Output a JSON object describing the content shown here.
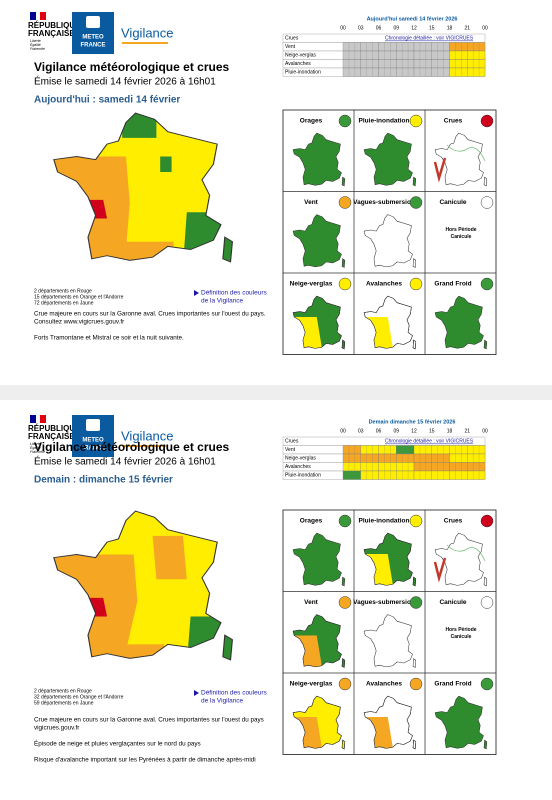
{
  "logo": {
    "line1": "RÉPUBLIQUE",
    "line2": "FRANÇAISE",
    "motto": [
      "Liberté",
      "Égalité",
      "Fraternité"
    ],
    "brand1": "METEO",
    "brand2": "FRANCE",
    "vigilance": "Vigilance"
  },
  "pages": [
    {
      "timeline": {
        "title": "Aujourd'hui samedi 14 février 2026",
        "hours": [
          "00",
          "03",
          "06",
          "09",
          "12",
          "15",
          "18",
          "21",
          "00"
        ],
        "link": "Chronologie détaillée : voir VIGICRUES",
        "rows": [
          {
            "label": "Crues",
            "cells": []
          },
          {
            "label": "Vent",
            "cells": [
              "#c8c8c8",
              "#c8c8c8",
              "#c8c8c8",
              "#c8c8c8",
              "#c8c8c8",
              "#c8c8c8",
              "#f5a623",
              "#f5a623"
            ]
          },
          {
            "label": "Neige-verglas",
            "cells": [
              "#c8c8c8",
              "#c8c8c8",
              "#c8c8c8",
              "#c8c8c8",
              "#c8c8c8",
              "#c8c8c8",
              "#ffee00",
              "#ffee00"
            ]
          },
          {
            "label": "Avalanches",
            "cells": [
              "#c8c8c8",
              "#c8c8c8",
              "#c8c8c8",
              "#c8c8c8",
              "#c8c8c8",
              "#c8c8c8",
              "#ffee00",
              "#ffee00"
            ]
          },
          {
            "label": "Pluie-inondation",
            "cells": [
              "#c8c8c8",
              "#c8c8c8",
              "#c8c8c8",
              "#c8c8c8",
              "#c8c8c8",
              "#c8c8c8",
              "#ffee00",
              "#ffee00"
            ]
          }
        ]
      },
      "title": "Vigilance météorologique et crues",
      "issued": "Émise le samedi 14 février 2026 à 16h01",
      "heading": "Aujourd'hui : samedi 14 février",
      "counts": [
        "2 départements en Rouge",
        "15 départements en Orange et l'Andorre",
        "72 départements en Jaune"
      ],
      "legend_link": [
        "Définition des couleurs",
        "de la Vigilance"
      ],
      "paragraphs": [
        [
          "Crue majeure en cours sur la Garonne aval. Crues importantes sur l'ouest du pays.",
          "Consultez www.vigicrues.gouv.fr"
        ],
        [
          "Forts Tramontane et Mistral ce soir et la nuit suivante."
        ]
      ],
      "tiles": [
        {
          "label": "Orages",
          "icon": "#3a9a3a",
          "map": [
            "#2e8b2e",
            null
          ]
        },
        {
          "label": "Pluie-inondation",
          "icon": "#ffee00",
          "map": [
            "#2e8b2e",
            null
          ]
        },
        {
          "label": "Crues",
          "icon": "#d0021b",
          "map": [
            "#ffffff",
            null
          ]
        },
        {
          "label": "Vent",
          "icon": "#f5a623",
          "map": [
            "#2e8b2e",
            null
          ]
        },
        {
          "label": "Vagues-submersion",
          "icon": "#3a9a3a",
          "map": [
            "#ffffff",
            null
          ]
        },
        {
          "label": "Canicule",
          "icon": "#ffffff",
          "note": [
            "Hors Période",
            "Canicule"
          ]
        },
        {
          "label": "Neige-verglas",
          "icon": "#ffee00",
          "map": [
            "#2e8b2e",
            "#ffee00"
          ]
        },
        {
          "label": "Avalanches",
          "icon": "#ffee00",
          "map": [
            "#ffffff",
            "#ffee00"
          ]
        },
        {
          "label": "Grand Froid",
          "icon": "#3a9a3a",
          "map": [
            "#2e8b2e",
            null
          ]
        }
      ]
    },
    {
      "timeline": {
        "title": "Demain dimanche 15 février 2026",
        "hours": [
          "00",
          "03",
          "06",
          "09",
          "12",
          "15",
          "18",
          "21",
          "00"
        ],
        "link": "Chronologie détaillée : voir VIGICRUES",
        "rows": [
          {
            "label": "Crues",
            "cells": []
          },
          {
            "label": "Vent",
            "cells": [
              "#f5a623",
              "#ffee00",
              "#ffee00",
              "#3a9a3a",
              "#ffee00",
              "#ffee00",
              "#ffee00",
              "#ffee00"
            ]
          },
          {
            "label": "Neige-verglas",
            "cells": [
              "#f5a623",
              "#f5a623",
              "#f5a623",
              "#f5a623",
              "#f5a623",
              "#f5a623",
              "#ffee00",
              "#ffee00"
            ]
          },
          {
            "label": "Avalanches",
            "cells": [
              "#ffee00",
              "#ffee00",
              "#ffee00",
              "#ffee00",
              "#f5a623",
              "#f5a623",
              "#f5a623",
              "#f5a623"
            ]
          },
          {
            "label": "Pluie-inondation",
            "cells": [
              "#3a9a3a",
              "#ffee00",
              "#ffee00",
              "#ffee00",
              "#ffee00",
              "#ffee00",
              "#ffee00",
              "#ffee00"
            ]
          }
        ]
      },
      "title": "Vigilance météorologique et crues",
      "issued": "Émise le samedi 14 février 2026 à 16h01",
      "heading": "Demain : dimanche 15 février",
      "counts": [
        "2 départements en Rouge",
        "32 départements en Orange et l'Andorre",
        "59 départements en Jaune"
      ],
      "legend_link": [
        "Définition des couleurs",
        "de la Vigilance"
      ],
      "paragraphs": [
        [
          "Crue majeure en cours sur la Garonne aval. Crues importantes sur l'ouest du pays",
          "vigicrues.gouv.fr"
        ],
        [
          "Épisode de neige et pluies verglaçantes sur le nord du pays"
        ],
        [
          "Risque d'avalanche important sur les Pyrénées à partir de dimanche après-midi"
        ]
      ],
      "tiles": [
        {
          "label": "Orages",
          "icon": "#3a9a3a",
          "map": [
            "#2e8b2e",
            null
          ]
        },
        {
          "label": "Pluie-inondation",
          "icon": "#ffee00",
          "map": [
            "#2e8b2e",
            "#ffee00"
          ]
        },
        {
          "label": "Crues",
          "icon": "#d0021b",
          "map": [
            "#ffffff",
            null
          ]
        },
        {
          "label": "Vent",
          "icon": "#f5a623",
          "map": [
            "#2e8b2e",
            "#f5a623"
          ]
        },
        {
          "label": "Vagues-submersion",
          "icon": "#3a9a3a",
          "map": [
            "#ffffff",
            null
          ]
        },
        {
          "label": "Canicule",
          "icon": "#ffffff",
          "note": [
            "Hors Période",
            "Canicule"
          ]
        },
        {
          "label": "Neige-verglas",
          "icon": "#f5a623",
          "map": [
            "#ffee00",
            "#f5a623"
          ]
        },
        {
          "label": "Avalanches",
          "icon": "#f5a623",
          "map": [
            "#ffffff",
            "#f5a623"
          ]
        },
        {
          "label": "Grand Froid",
          "icon": "#3a9a3a",
          "map": [
            "#2e8b2e",
            null
          ]
        }
      ]
    }
  ]
}
